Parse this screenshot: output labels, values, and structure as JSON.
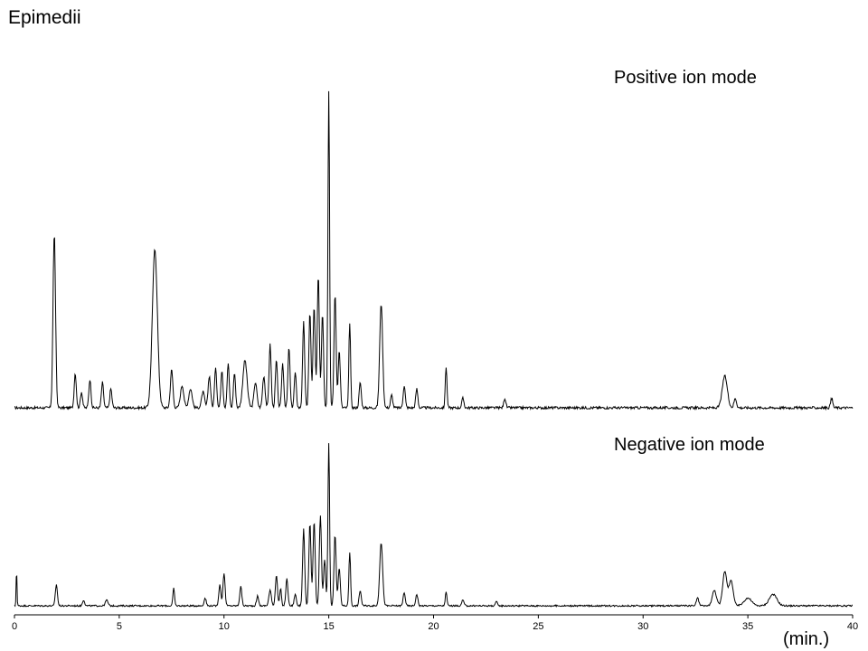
{
  "title": "Epimedii",
  "chart_data": {
    "type": "line",
    "title": "Epimedii",
    "xlabel": "(min.)",
    "xlim": [
      0,
      40
    ],
    "x_ticks": [
      "0",
      "5",
      "10",
      "15",
      "20",
      "25",
      "30",
      "35",
      "40"
    ],
    "grid": false,
    "series": [
      {
        "name": "Positive ion mode",
        "color": "#000000",
        "peaks": [
          [
            1.9,
            0.55,
            0.06
          ],
          [
            2.9,
            0.11,
            0.05
          ],
          [
            3.2,
            0.05,
            0.05
          ],
          [
            3.6,
            0.09,
            0.05
          ],
          [
            4.2,
            0.08,
            0.05
          ],
          [
            4.6,
            0.06,
            0.05
          ],
          [
            6.7,
            0.5,
            0.12
          ],
          [
            7.5,
            0.12,
            0.06
          ],
          [
            8.0,
            0.07,
            0.08
          ],
          [
            8.4,
            0.06,
            0.08
          ],
          [
            9.0,
            0.05,
            0.07
          ],
          [
            9.3,
            0.1,
            0.06
          ],
          [
            9.6,
            0.13,
            0.05
          ],
          [
            9.9,
            0.12,
            0.05
          ],
          [
            10.2,
            0.14,
            0.05
          ],
          [
            10.5,
            0.11,
            0.05
          ],
          [
            11.0,
            0.15,
            0.1
          ],
          [
            11.5,
            0.08,
            0.07
          ],
          [
            11.9,
            0.1,
            0.06
          ],
          [
            12.2,
            0.2,
            0.05
          ],
          [
            12.5,
            0.15,
            0.05
          ],
          [
            12.8,
            0.14,
            0.05
          ],
          [
            13.1,
            0.19,
            0.05
          ],
          [
            13.4,
            0.11,
            0.05
          ],
          [
            13.8,
            0.27,
            0.05
          ],
          [
            14.1,
            0.3,
            0.05
          ],
          [
            14.3,
            0.32,
            0.05
          ],
          [
            14.5,
            0.42,
            0.05
          ],
          [
            14.7,
            0.3,
            0.05
          ],
          [
            15.0,
            1.0,
            0.04
          ],
          [
            15.3,
            0.36,
            0.05
          ],
          [
            15.5,
            0.18,
            0.05
          ],
          [
            16.0,
            0.27,
            0.04
          ],
          [
            16.5,
            0.08,
            0.05
          ],
          [
            17.5,
            0.33,
            0.07
          ],
          [
            18.0,
            0.04,
            0.05
          ],
          [
            18.6,
            0.07,
            0.05
          ],
          [
            19.2,
            0.06,
            0.05
          ],
          [
            20.6,
            0.13,
            0.04
          ],
          [
            21.4,
            0.03,
            0.05
          ],
          [
            23.4,
            0.03,
            0.05
          ],
          [
            33.9,
            0.1,
            0.12
          ],
          [
            34.4,
            0.03,
            0.06
          ],
          [
            39.0,
            0.03,
            0.05
          ]
        ]
      },
      {
        "name": "Negative ion mode",
        "color": "#000000",
        "peaks": [
          [
            0.1,
            0.2,
            0.02
          ],
          [
            2.0,
            0.11,
            0.05
          ],
          [
            3.3,
            0.03,
            0.05
          ],
          [
            4.4,
            0.03,
            0.06
          ],
          [
            7.6,
            0.09,
            0.04
          ],
          [
            9.1,
            0.04,
            0.05
          ],
          [
            9.8,
            0.11,
            0.05
          ],
          [
            10.0,
            0.17,
            0.05
          ],
          [
            10.8,
            0.1,
            0.05
          ],
          [
            11.6,
            0.05,
            0.05
          ],
          [
            12.2,
            0.08,
            0.06
          ],
          [
            12.5,
            0.16,
            0.05
          ],
          [
            12.7,
            0.09,
            0.04
          ],
          [
            13.0,
            0.14,
            0.05
          ],
          [
            13.4,
            0.06,
            0.05
          ],
          [
            13.8,
            0.4,
            0.05
          ],
          [
            14.1,
            0.43,
            0.05
          ],
          [
            14.3,
            0.44,
            0.05
          ],
          [
            14.6,
            0.47,
            0.05
          ],
          [
            14.8,
            0.24,
            0.05
          ],
          [
            15.0,
            0.85,
            0.04
          ],
          [
            15.3,
            0.37,
            0.05
          ],
          [
            15.5,
            0.2,
            0.05
          ],
          [
            16.0,
            0.28,
            0.04
          ],
          [
            16.5,
            0.08,
            0.05
          ],
          [
            17.5,
            0.33,
            0.07
          ],
          [
            18.6,
            0.07,
            0.05
          ],
          [
            19.2,
            0.06,
            0.05
          ],
          [
            20.6,
            0.07,
            0.04
          ],
          [
            21.4,
            0.03,
            0.05
          ],
          [
            23.0,
            0.02,
            0.05
          ],
          [
            32.6,
            0.04,
            0.06
          ],
          [
            33.4,
            0.08,
            0.1
          ],
          [
            33.9,
            0.18,
            0.1
          ],
          [
            34.2,
            0.13,
            0.1
          ],
          [
            35.0,
            0.04,
            0.18
          ],
          [
            36.2,
            0.06,
            0.18
          ]
        ]
      }
    ]
  }
}
